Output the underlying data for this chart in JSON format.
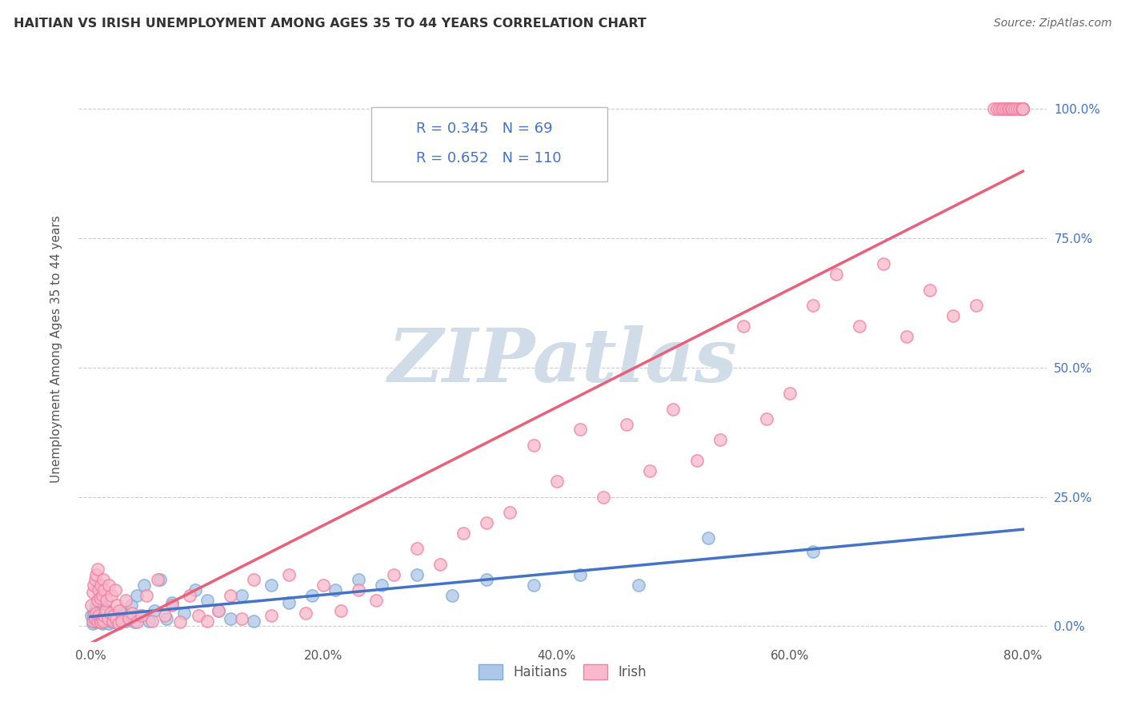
{
  "title": "HAITIAN VS IRISH UNEMPLOYMENT AMONG AGES 35 TO 44 YEARS CORRELATION CHART",
  "source": "Source: ZipAtlas.com",
  "ylabel": "Unemployment Among Ages 35 to 44 years",
  "haitian_color": "#aec6e8",
  "irish_color": "#f9b8cc",
  "haitian_edge_color": "#7aadd4",
  "irish_edge_color": "#f080a0",
  "haitian_line_color": "#4472c4",
  "irish_line_color": "#e8607a",
  "R_haitian": 0.345,
  "N_haitian": 69,
  "R_irish": 0.652,
  "N_irish": 110,
  "watermark_text": "ZIPatlas",
  "watermark_color": "#d0dce8",
  "background_color": "#ffffff",
  "grid_color": "#cccccc",
  "right_tick_color": "#4472c4",
  "legend_text_color": "#4472c4",
  "title_color": "#333333",
  "source_color": "#666666",
  "axis_label_color": "#555555",
  "tick_label_color": "#555555",
  "xlim": [
    -0.01,
    0.82
  ],
  "ylim": [
    -0.03,
    1.1
  ],
  "xticks": [
    0.0,
    0.2,
    0.4,
    0.6,
    0.8
  ],
  "yticks": [
    0.0,
    0.25,
    0.5,
    0.75,
    1.0
  ],
  "xtick_labels": [
    "0.0%",
    "20.0%",
    "40.0%",
    "60.0%",
    "80.0%"
  ],
  "ytick_labels": [
    "0.0%",
    "25.0%",
    "50.0%",
    "75.0%",
    "100.0%"
  ],
  "haitian_x": [
    0.001,
    0.002,
    0.003,
    0.003,
    0.004,
    0.004,
    0.005,
    0.005,
    0.006,
    0.006,
    0.007,
    0.007,
    0.008,
    0.008,
    0.009,
    0.009,
    0.01,
    0.01,
    0.011,
    0.011,
    0.012,
    0.012,
    0.013,
    0.014,
    0.015,
    0.015,
    0.016,
    0.017,
    0.018,
    0.019,
    0.02,
    0.021,
    0.022,
    0.023,
    0.025,
    0.027,
    0.03,
    0.032,
    0.035,
    0.038,
    0.04,
    0.043,
    0.046,
    0.05,
    0.055,
    0.06,
    0.065,
    0.07,
    0.08,
    0.09,
    0.1,
    0.11,
    0.12,
    0.13,
    0.14,
    0.155,
    0.17,
    0.19,
    0.21,
    0.23,
    0.25,
    0.28,
    0.31,
    0.34,
    0.38,
    0.42,
    0.47,
    0.53,
    0.62
  ],
  "haitian_y": [
    0.02,
    0.005,
    0.015,
    0.025,
    0.008,
    0.03,
    0.01,
    0.04,
    0.012,
    0.035,
    0.008,
    0.025,
    0.015,
    0.045,
    0.01,
    0.03,
    0.005,
    0.02,
    0.012,
    0.038,
    0.008,
    0.025,
    0.015,
    0.032,
    0.01,
    0.028,
    0.005,
    0.018,
    0.022,
    0.008,
    0.015,
    0.01,
    0.02,
    0.008,
    0.012,
    0.025,
    0.01,
    0.015,
    0.04,
    0.008,
    0.06,
    0.02,
    0.08,
    0.01,
    0.03,
    0.09,
    0.015,
    0.045,
    0.025,
    0.07,
    0.05,
    0.03,
    0.015,
    0.06,
    0.01,
    0.08,
    0.045,
    0.06,
    0.07,
    0.09,
    0.08,
    0.1,
    0.06,
    0.09,
    0.08,
    0.1,
    0.08,
    0.17,
    0.145
  ],
  "irish_x": [
    0.001,
    0.002,
    0.002,
    0.003,
    0.003,
    0.004,
    0.004,
    0.005,
    0.005,
    0.006,
    0.006,
    0.006,
    0.007,
    0.007,
    0.008,
    0.008,
    0.009,
    0.009,
    0.01,
    0.01,
    0.011,
    0.011,
    0.012,
    0.012,
    0.013,
    0.014,
    0.015,
    0.016,
    0.017,
    0.018,
    0.019,
    0.02,
    0.021,
    0.022,
    0.023,
    0.024,
    0.025,
    0.027,
    0.03,
    0.033,
    0.036,
    0.04,
    0.044,
    0.048,
    0.053,
    0.058,
    0.064,
    0.07,
    0.077,
    0.085,
    0.093,
    0.1,
    0.11,
    0.12,
    0.13,
    0.14,
    0.155,
    0.17,
    0.185,
    0.2,
    0.215,
    0.23,
    0.245,
    0.26,
    0.28,
    0.3,
    0.32,
    0.34,
    0.36,
    0.38,
    0.4,
    0.42,
    0.44,
    0.46,
    0.48,
    0.5,
    0.52,
    0.54,
    0.56,
    0.58,
    0.6,
    0.62,
    0.64,
    0.66,
    0.68,
    0.7,
    0.72,
    0.74,
    0.76,
    0.775,
    0.778,
    0.78,
    0.782,
    0.783,
    0.785,
    0.787,
    0.788,
    0.79,
    0.791,
    0.793,
    0.795,
    0.797,
    0.799,
    0.8,
    0.8,
    0.8,
    0.8,
    0.8,
    0.8,
    0.8
  ],
  "irish_y": [
    0.04,
    0.01,
    0.065,
    0.02,
    0.08,
    0.015,
    0.09,
    0.025,
    0.1,
    0.01,
    0.05,
    0.11,
    0.02,
    0.07,
    0.012,
    0.055,
    0.008,
    0.08,
    0.015,
    0.06,
    0.01,
    0.09,
    0.02,
    0.07,
    0.03,
    0.05,
    0.015,
    0.08,
    0.025,
    0.06,
    0.01,
    0.02,
    0.07,
    0.015,
    0.04,
    0.005,
    0.03,
    0.01,
    0.05,
    0.015,
    0.025,
    0.008,
    0.02,
    0.06,
    0.01,
    0.09,
    0.02,
    0.04,
    0.008,
    0.06,
    0.02,
    0.01,
    0.03,
    0.06,
    0.015,
    0.09,
    0.02,
    0.1,
    0.025,
    0.08,
    0.03,
    0.07,
    0.05,
    0.1,
    0.15,
    0.12,
    0.18,
    0.2,
    0.22,
    0.35,
    0.28,
    0.38,
    0.25,
    0.39,
    0.3,
    0.42,
    0.32,
    0.36,
    0.58,
    0.4,
    0.45,
    0.62,
    0.68,
    0.58,
    0.7,
    0.56,
    0.65,
    0.6,
    0.62,
    1.0,
    1.0,
    1.0,
    1.0,
    1.0,
    1.0,
    1.0,
    1.0,
    1.0,
    1.0,
    1.0,
    1.0,
    1.0,
    1.0,
    1.0,
    1.0,
    1.0,
    1.0,
    1.0,
    1.0,
    1.0
  ]
}
